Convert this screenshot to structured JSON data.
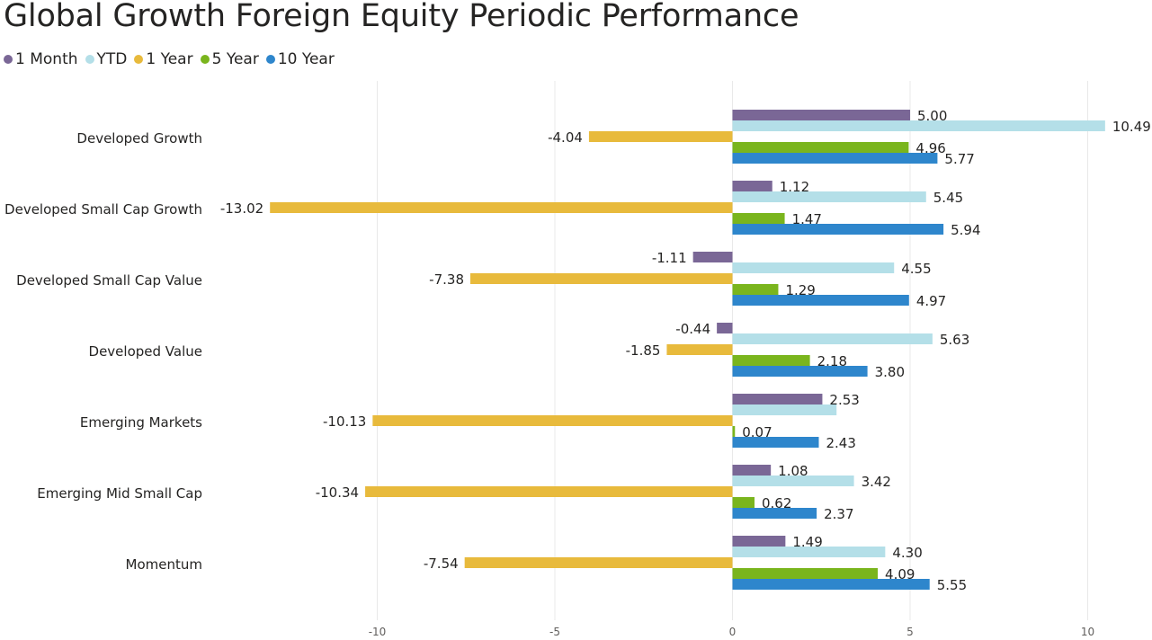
{
  "title": "Global Growth Foreign Equity Periodic Performance",
  "chart_data": {
    "type": "bar",
    "orientation": "horizontal",
    "title": "Global Growth Foreign Equity Periodic Performance",
    "xlabel": "",
    "ylabel": "",
    "xlim": [
      -15,
      11.6
    ],
    "x_ticks": [
      -10,
      -5,
      0,
      5,
      10
    ],
    "x_tick_labels": [
      "-10",
      "-5",
      "0",
      "5",
      "10"
    ],
    "grid": true,
    "legend_position": "top-left",
    "categories": [
      "Developed Growth",
      "Developed Small Cap Growth",
      "Developed Small Cap Value",
      "Developed Value",
      "Emerging Markets",
      "Emerging Mid Small Cap",
      "Momentum"
    ],
    "series": [
      {
        "name": "1 Month",
        "color": "#7a6796",
        "values": [
          5.0,
          1.12,
          -1.11,
          -0.44,
          2.53,
          1.08,
          1.49
        ],
        "labels": [
          "5.00",
          "1.12",
          "-1.11",
          "-0.44",
          "2.53",
          "1.08",
          "1.49"
        ]
      },
      {
        "name": "YTD",
        "color": "#b4dfe8",
        "values": [
          10.49,
          5.45,
          4.55,
          5.63,
          2.93,
          3.42,
          4.3
        ],
        "labels": [
          "10.49",
          "5.45",
          "4.55",
          "5.63",
          "",
          "3.42",
          "4.30"
        ]
      },
      {
        "name": "1 Year",
        "color": "#e8ba3c",
        "values": [
          -4.04,
          -13.02,
          -7.38,
          -1.85,
          -10.13,
          -10.34,
          -7.54
        ],
        "labels": [
          "-4.04",
          "-13.02",
          "-7.38",
          "-1.85",
          "-10.13",
          "-10.34",
          "-7.54"
        ]
      },
      {
        "name": "5 Year",
        "color": "#7ab51d",
        "values": [
          4.96,
          1.47,
          1.29,
          2.18,
          0.07,
          0.62,
          4.09
        ],
        "labels": [
          "4.96",
          "1.47",
          "1.29",
          "2.18",
          "0.07",
          "0.62",
          "4.09"
        ]
      },
      {
        "name": "10 Year",
        "color": "#2e86cc",
        "values": [
          5.77,
          5.94,
          4.97,
          3.8,
          2.43,
          2.37,
          5.55
        ],
        "labels": [
          "5.77",
          "5.94",
          "4.97",
          "3.80",
          "2.43",
          "2.37",
          "5.55"
        ]
      }
    ]
  }
}
